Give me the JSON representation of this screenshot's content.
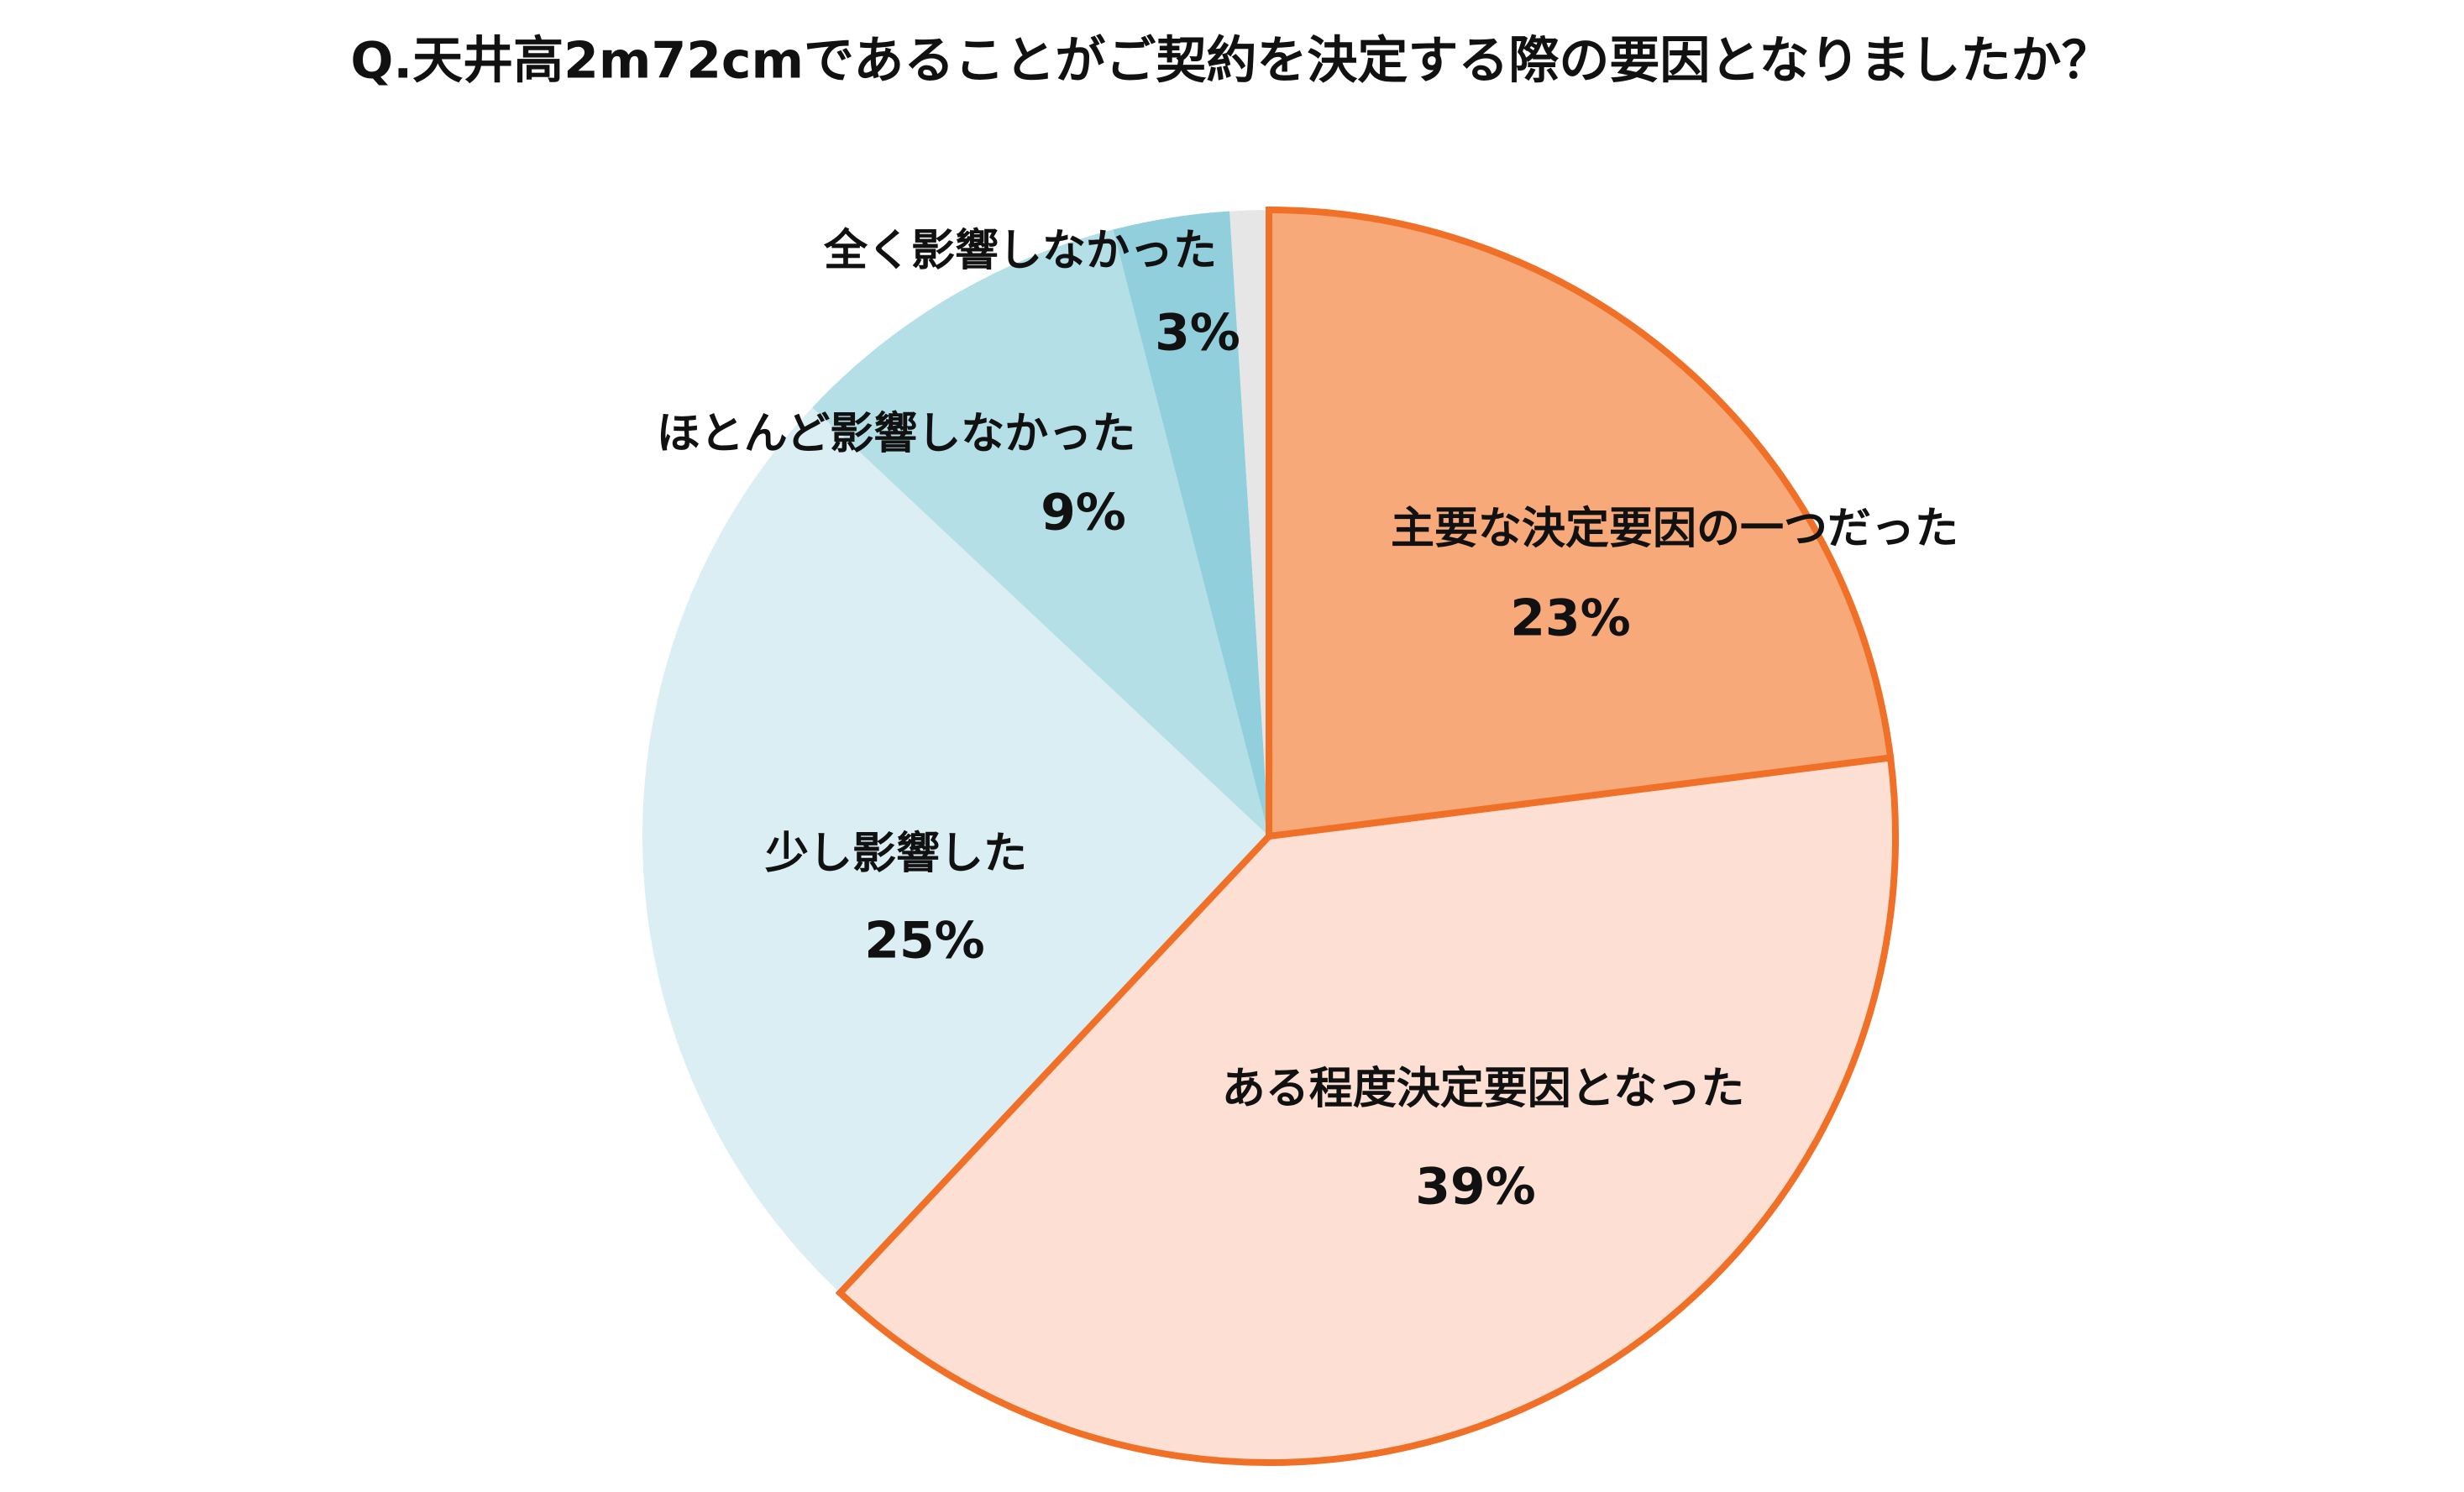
{
  "chart_data": {
    "type": "pie",
    "title": "Q.天井高2m72cmであることがご契約を決定する際の要因となりましたか？",
    "categories": [
      "主要な決定要因の一つだった",
      "ある程度決定要因となった",
      "少し影響した",
      "ほとんど影響しなかった",
      "全く影響しなかった",
      null
    ],
    "values": [
      23,
      39,
      25,
      9,
      3,
      1
    ],
    "value_labels": [
      "23%",
      "39%",
      "25%",
      "9%",
      "3%",
      null
    ],
    "colors": [
      "#F7A97A",
      "#FDE0D3",
      "#DAEEF3",
      "#B4DFE6",
      "#92CFDC",
      "#E6E6E6"
    ],
    "edge_colors": [
      "#F07028",
      "#F07028",
      null,
      null,
      null,
      null
    ],
    "start_angle": 90,
    "direction": "clockwise"
  }
}
